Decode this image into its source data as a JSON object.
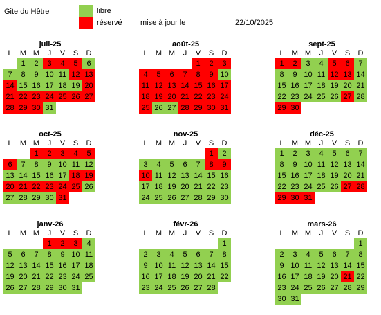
{
  "header": {
    "title": "Gite du Hêtre",
    "legend_free": "libre",
    "legend_booked": "réservé",
    "update_label": "mise à jour le",
    "update_date": "22/10/2025"
  },
  "colors": {
    "free": "#92d050",
    "booked": "#ff0000"
  },
  "weekday_labels": [
    "L",
    "M",
    "M",
    "J",
    "V",
    "S",
    "D"
  ],
  "months": [
    {
      "title": "juil-25",
      "offset": 1,
      "days": 31,
      "booked": [
        3,
        4,
        5,
        12,
        13,
        14,
        20,
        21,
        22,
        23,
        24,
        25,
        26,
        27,
        28,
        29,
        30
      ]
    },
    {
      "title": "août-25",
      "offset": 4,
      "days": 31,
      "booked": [
        1,
        2,
        3,
        4,
        5,
        6,
        7,
        8,
        9,
        11,
        12,
        13,
        14,
        15,
        16,
        17,
        18,
        19,
        20,
        21,
        22,
        23,
        24,
        25,
        28,
        29,
        30,
        31
      ]
    },
    {
      "title": "sept-25",
      "offset": 0,
      "days": 30,
      "booked": [
        1,
        2,
        5,
        6,
        12,
        13,
        27,
        29,
        30
      ]
    },
    {
      "title": "oct-25",
      "offset": 2,
      "days": 31,
      "booked": [
        1,
        2,
        3,
        4,
        5,
        6,
        18,
        19,
        20,
        21,
        22,
        23,
        24,
        25,
        31
      ]
    },
    {
      "title": "nov-25",
      "offset": 5,
      "days": 30,
      "booked": [
        1,
        8,
        9,
        10
      ]
    },
    {
      "title": "déc-25",
      "offset": 0,
      "days": 31,
      "booked": [
        27,
        28,
        29,
        30,
        31
      ]
    },
    {
      "title": "janv-26",
      "offset": 3,
      "days": 31,
      "booked": [
        1,
        2,
        3
      ]
    },
    {
      "title": "févr-26",
      "offset": 6,
      "days": 28,
      "booked": []
    },
    {
      "title": "mars-26",
      "offset": 6,
      "days": 31,
      "booked": [
        21
      ]
    }
  ]
}
